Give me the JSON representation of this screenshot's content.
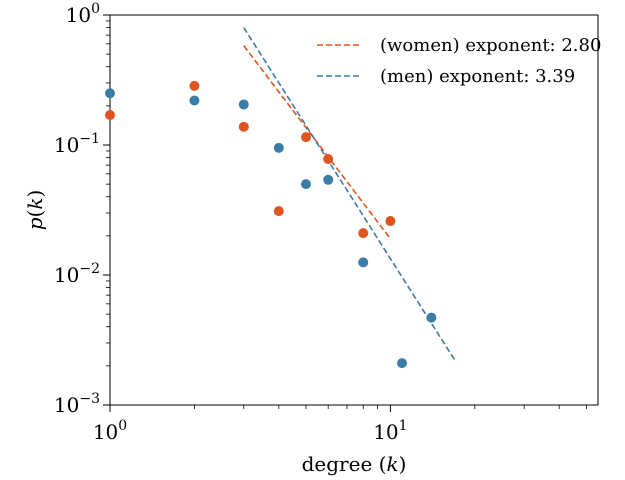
{
  "chart_data": {
    "type": "scatter",
    "xscale": "log",
    "yscale": "log",
    "xlim": [
      1,
      55
    ],
    "ylim": [
      0.001,
      1
    ],
    "xlabel": {
      "prefix": "degree (",
      "var": "k",
      "suffix": ")"
    },
    "ylabel": {
      "func": "p",
      "open": "(",
      "var": "k",
      "close": ")"
    },
    "x_ticks": [
      {
        "value": 1,
        "base": "10",
        "exp": "0"
      },
      {
        "value": 10,
        "base": "10",
        "exp": "1"
      }
    ],
    "y_ticks": [
      {
        "value": 0.001,
        "base": "10",
        "exp": "−3"
      },
      {
        "value": 0.01,
        "base": "10",
        "exp": "−2"
      },
      {
        "value": 0.1,
        "base": "10",
        "exp": "−1"
      },
      {
        "value": 1,
        "base": "10",
        "exp": "0"
      }
    ],
    "legend_position": "top-right",
    "series": [
      {
        "key": "women",
        "color": "#e0541e",
        "points": [
          {
            "x": 1,
            "y": 0.17
          },
          {
            "x": 2,
            "y": 0.285
          },
          {
            "x": 3,
            "y": 0.138
          },
          {
            "x": 4,
            "y": 0.031
          },
          {
            "x": 5,
            "y": 0.115
          },
          {
            "x": 6,
            "y": 0.078
          },
          {
            "x": 8,
            "y": 0.021
          },
          {
            "x": 10,
            "y": 0.026
          }
        ],
        "fit": {
          "label": "(women) exponent: 2.80",
          "x": [
            3,
            10
          ],
          "y": [
            0.58,
            0.019
          ]
        }
      },
      {
        "key": "men",
        "color": "#3a7ca5",
        "points": [
          {
            "x": 1,
            "y": 0.25
          },
          {
            "x": 2,
            "y": 0.22
          },
          {
            "x": 3,
            "y": 0.205
          },
          {
            "x": 4,
            "y": 0.095
          },
          {
            "x": 5,
            "y": 0.05
          },
          {
            "x": 6,
            "y": 0.054
          },
          {
            "x": 8,
            "y": 0.0125
          },
          {
            "x": 11,
            "y": 0.0021
          },
          {
            "x": 14,
            "y": 0.0047
          }
        ],
        "fit": {
          "label": "(men) exponent: 3.39",
          "x": [
            3,
            17
          ],
          "y": [
            0.8,
            0.0022
          ]
        }
      }
    ]
  }
}
